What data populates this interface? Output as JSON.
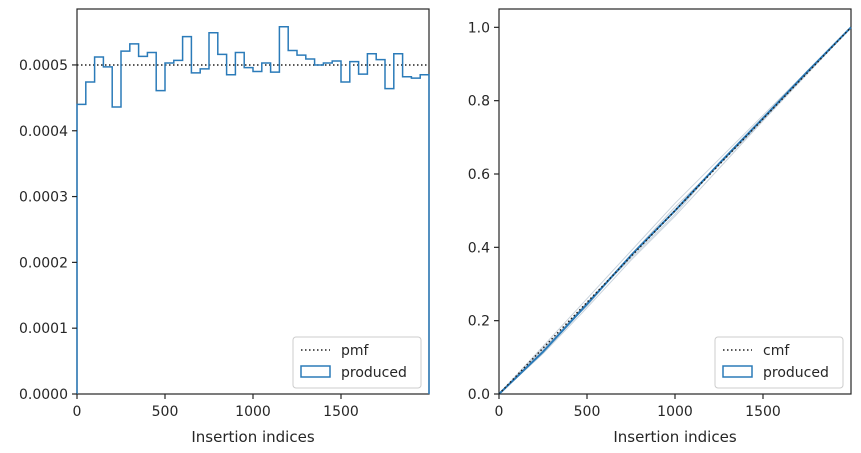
{
  "chart_data": [
    {
      "type": "histogram-step",
      "xlabel": "Insertion indices",
      "ylabel": "",
      "xlim": [
        0,
        2000
      ],
      "ylim": [
        0,
        0.000585
      ],
      "xticks": [
        0,
        500,
        1000,
        1500
      ],
      "yticks": [
        0,
        0.0001,
        0.0002,
        0.0003,
        0.0004,
        0.0005
      ],
      "ytick_labels": [
        "0.0000",
        "0.0001",
        "0.0002",
        "0.0003",
        "0.0004",
        "0.0005"
      ],
      "legend_position": "lower-right",
      "reference": {
        "name": "pmf",
        "value": 0.0005,
        "style": "dotted",
        "color": "#222222"
      },
      "series": [
        {
          "name": "produced",
          "color": "#2b7bb9",
          "bin_edges": [
            0,
            50,
            100,
            150,
            200,
            250,
            300,
            350,
            400,
            450,
            500,
            550,
            600,
            650,
            700,
            750,
            800,
            850,
            900,
            950,
            1000,
            1050,
            1100,
            1150,
            1200,
            1250,
            1300,
            1350,
            1400,
            1450,
            1500,
            1550,
            1600,
            1650,
            1700,
            1750,
            1800,
            1850,
            1900,
            1950,
            2000
          ],
          "values": [
            0.00044,
            0.000474,
            0.000512,
            0.000497,
            0.000436,
            0.000521,
            0.000532,
            0.000513,
            0.000519,
            0.000461,
            0.000503,
            0.000507,
            0.000543,
            0.000488,
            0.000494,
            0.000549,
            0.000516,
            0.000485,
            0.000519,
            0.000496,
            0.00049,
            0.000503,
            0.000489,
            0.000558,
            0.000522,
            0.000515,
            0.000509,
            0.0005,
            0.000503,
            0.000506,
            0.000474,
            0.000505,
            0.000486,
            0.000517,
            0.000508,
            0.000464,
            0.000517,
            0.000482,
            0.00048,
            0.000485
          ]
        }
      ]
    },
    {
      "type": "line",
      "xlabel": "Insertion indices",
      "ylabel": "",
      "xlim": [
        0,
        2000
      ],
      "ylim": [
        0,
        1.05
      ],
      "xticks": [
        0,
        500,
        1000,
        1500
      ],
      "yticks": [
        0,
        0.2,
        0.4,
        0.6,
        0.8,
        1.0
      ],
      "ytick_labels": [
        "0.0",
        "0.2",
        "0.4",
        "0.6",
        "0.8",
        "1.0"
      ],
      "legend_position": "lower-right",
      "reference": {
        "name": "cmf",
        "x": [
          0,
          2000
        ],
        "y": [
          0,
          1.0
        ],
        "style": "dotted",
        "color": "#222222"
      },
      "series": [
        {
          "name": "produced",
          "color": "#2b7bb9",
          "x": [
            0,
            250,
            500,
            750,
            1000,
            1250,
            1500,
            1750,
            2000
          ],
          "y": [
            0,
            0.115,
            0.245,
            0.378,
            0.5,
            0.628,
            0.752,
            0.878,
            1.0
          ]
        }
      ],
      "background_samples": {
        "color": "#c9d3dc",
        "curves": [
          {
            "x": [
              0,
              250,
              500,
              750,
              1000,
              1250,
              1500,
              1750,
              2000
            ],
            "y": [
              0,
              0.13,
              0.26,
              0.39,
              0.52,
              0.64,
              0.76,
              0.88,
              1.0
            ]
          },
          {
            "x": [
              0,
              250,
              500,
              750,
              1000,
              1250,
              1500,
              1750,
              2000
            ],
            "y": [
              0,
              0.11,
              0.235,
              0.365,
              0.485,
              0.615,
              0.745,
              0.872,
              1.0
            ]
          },
          {
            "x": [
              0,
              250,
              500,
              750,
              1000,
              1250,
              1500,
              1750,
              2000
            ],
            "y": [
              0,
              0.12,
              0.25,
              0.37,
              0.49,
              0.63,
              0.755,
              0.88,
              1.0
            ]
          },
          {
            "x": [
              0,
              250,
              500,
              750,
              1000,
              1250,
              1500,
              1750,
              2000
            ],
            "y": [
              0,
              0.125,
              0.24,
              0.38,
              0.51,
              0.625,
              0.745,
              0.875,
              1.0
            ]
          }
        ]
      }
    }
  ]
}
